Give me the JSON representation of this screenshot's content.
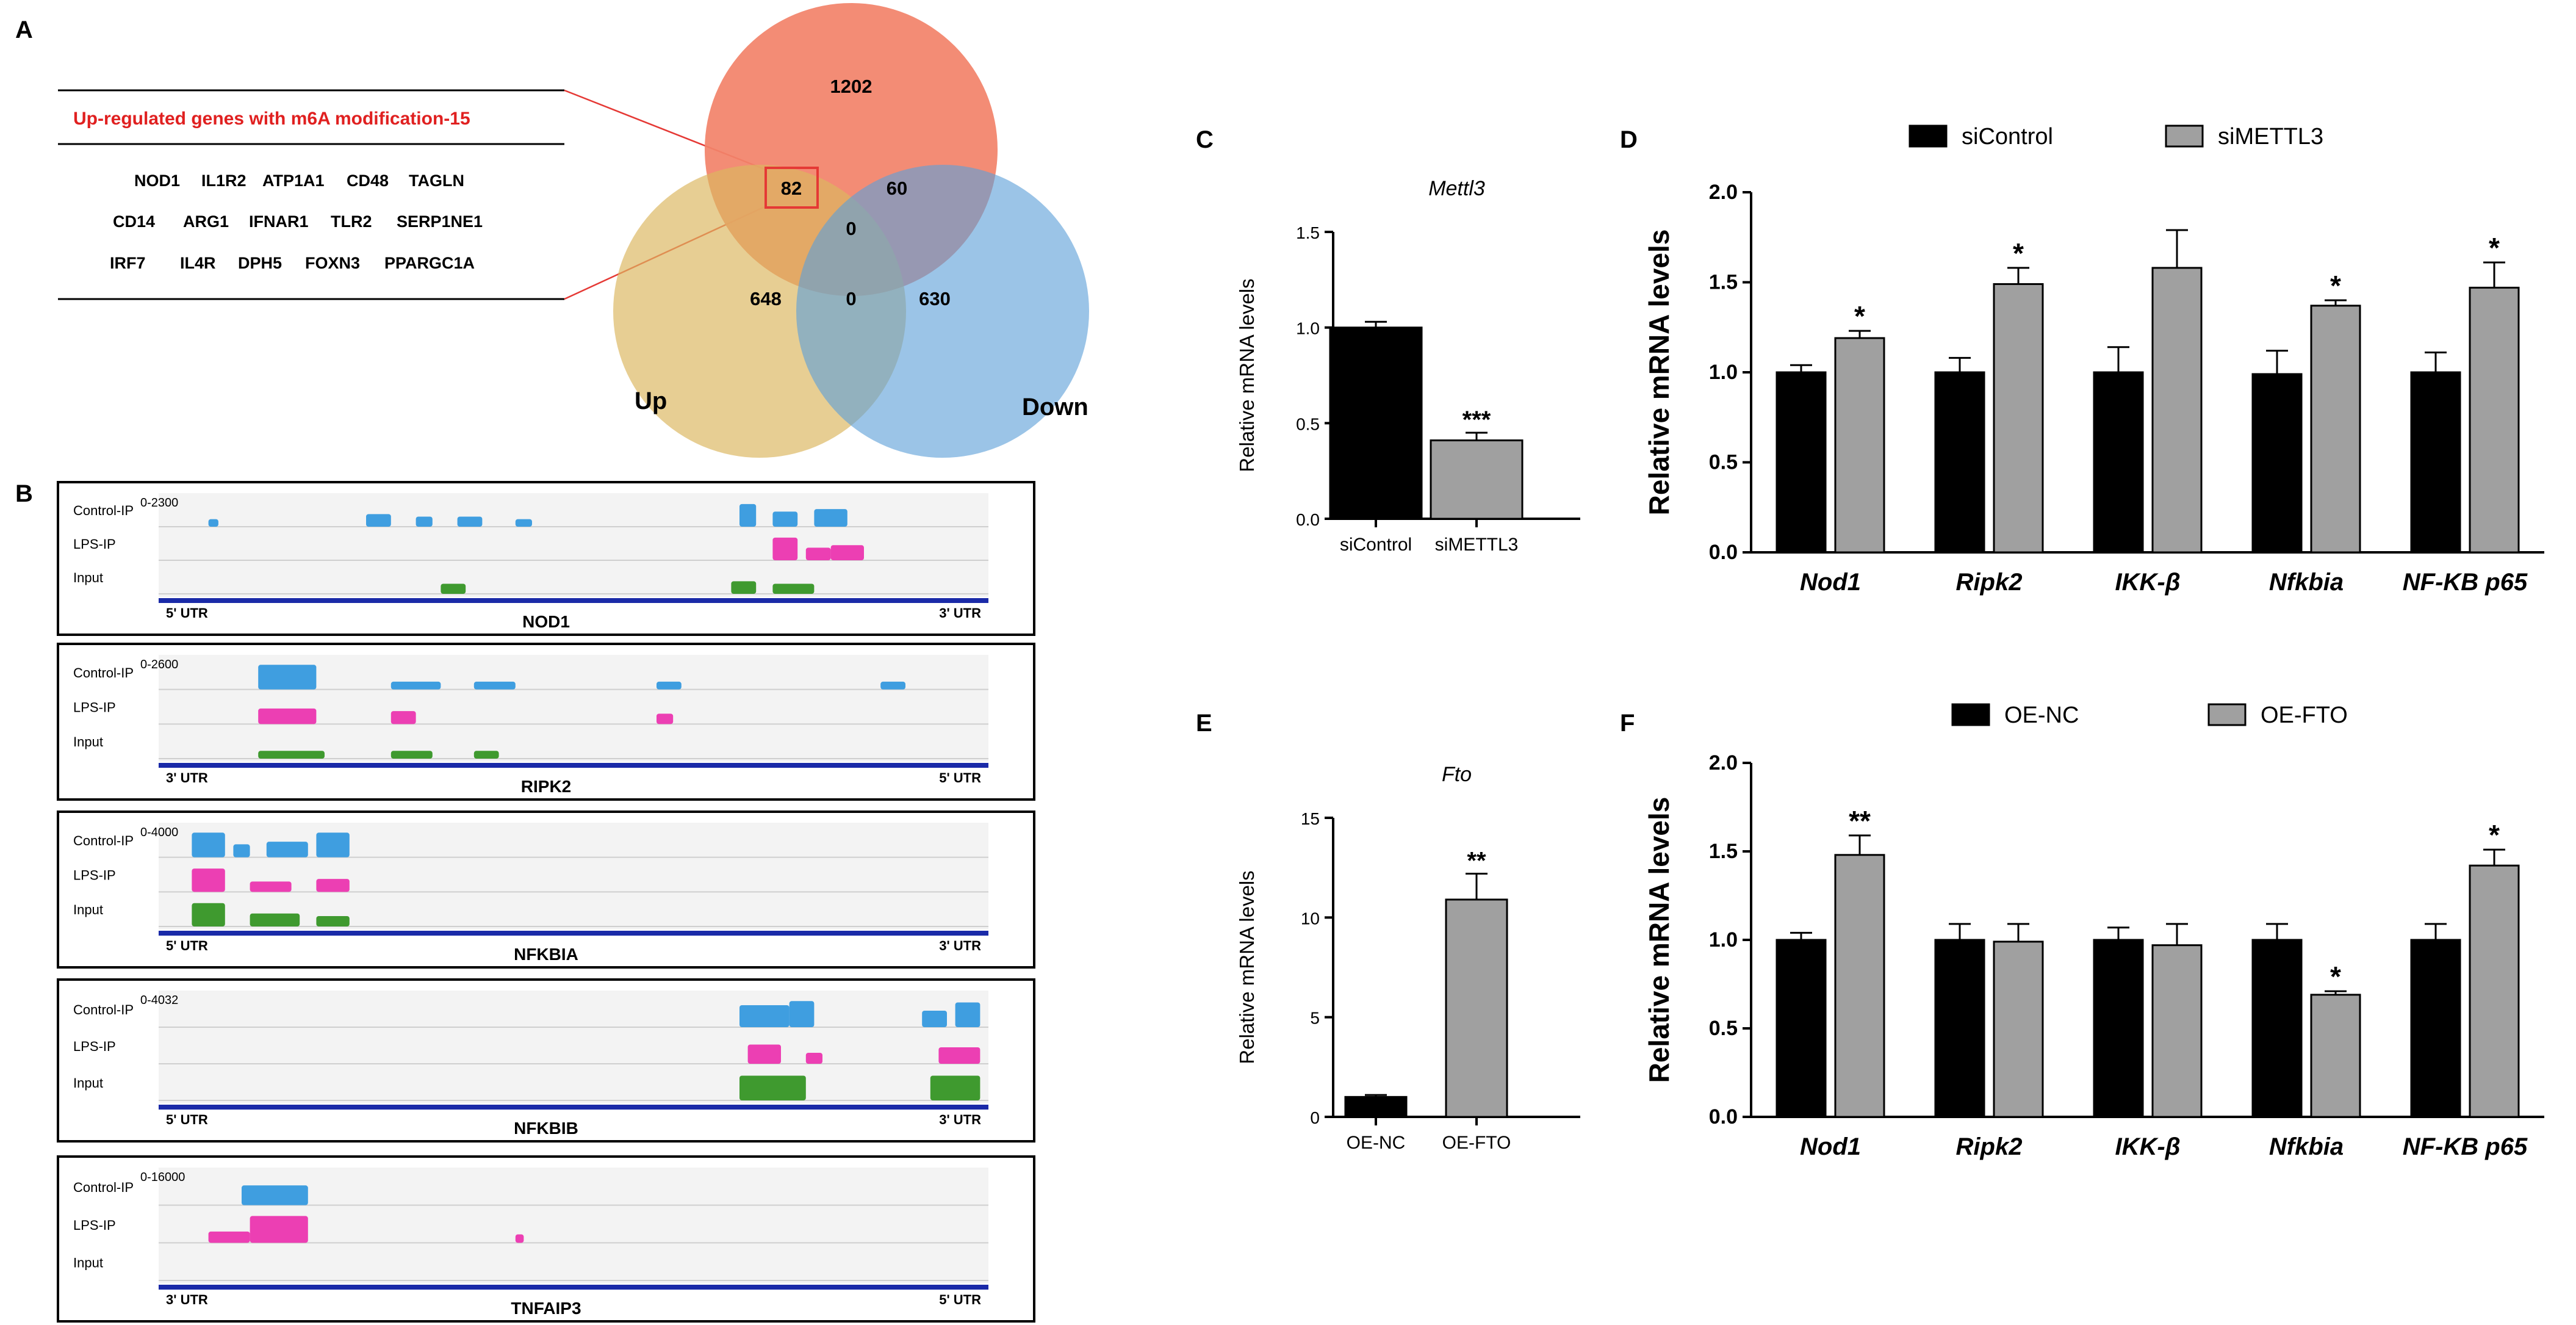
{
  "panel_letters": {
    "a": "A",
    "b": "B",
    "c": "C",
    "d": "D",
    "e": "E",
    "f": "F"
  },
  "venn": {
    "table_title": "Up-regulated genes with m6A modification-15",
    "gene_rows": [
      [
        "NOD1",
        "IL1R2",
        "ATP1A1",
        "CD48",
        "TAGLN"
      ],
      [
        "CD14",
        "ARG1",
        "IFNAR1",
        "TLR2",
        "SERP1NE1"
      ],
      [
        "IRF7",
        "IL4R",
        "DPH5",
        "FOXN3",
        "PPARGC1A"
      ]
    ],
    "regions": {
      "m6a_only": "1202",
      "m6a_up": "82",
      "m6a_down": "60",
      "all_three": "0",
      "up_only": "648",
      "up_down": "0",
      "down_only": "630"
    },
    "set_labels": {
      "up": "Up",
      "down": "Down"
    },
    "colors": {
      "m6a": "#f2836b",
      "up": "#dcb760",
      "down": "#5e9fd8",
      "highlight": "#e53935"
    }
  },
  "tracks": [
    {
      "gene": "NOD1",
      "range": "0-2300",
      "left_utr": "5' UTR",
      "right_utr": "3' UTR",
      "rows": [
        "Control-IP",
        "LPS-IP",
        "Input"
      ]
    },
    {
      "gene": "RIPK2",
      "range": "0-2600",
      "left_utr": "3' UTR",
      "right_utr": "5' UTR",
      "rows": [
        "Control-IP",
        "LPS-IP",
        "Input"
      ]
    },
    {
      "gene": "NFKBIA",
      "range": "0-4000",
      "left_utr": "5' UTR",
      "right_utr": "3' UTR",
      "rows": [
        "Control-IP",
        "LPS-IP",
        "Input"
      ]
    },
    {
      "gene": "NFKBIB",
      "range": "0-4032",
      "left_utr": "5' UTR",
      "right_utr": "3' UTR",
      "rows": [
        "Control-IP",
        "LPS-IP",
        "Input"
      ]
    },
    {
      "gene": "TNFAIP3",
      "range": "0-16000",
      "left_utr": "3' UTR",
      "right_utr": "5' UTR",
      "rows": [
        "Control-IP",
        "LPS-IP",
        "Input"
      ]
    }
  ],
  "track_colors": {
    "control": "#3f9ee0",
    "lps": "#ec3fb3",
    "input": "#3f9a2f",
    "axis": "#1a2aa8"
  },
  "chart_data": [
    {
      "id": "C",
      "type": "bar",
      "title": "Mettl3",
      "ylabel": "Relative mRNA levels",
      "categories": [
        "siControl",
        "siMETTL3"
      ],
      "values": [
        1.0,
        0.41
      ],
      "errors": [
        0.03,
        0.04
      ],
      "sig": [
        "",
        "***"
      ],
      "ylim": [
        0,
        1.5
      ],
      "yticks": [
        "0.0",
        "0.5",
        "1.0",
        "1.5"
      ],
      "colors": [
        "#000000",
        "#a0a0a0"
      ]
    },
    {
      "id": "D",
      "type": "bar",
      "ylabel": "Relative mRNA levels",
      "categories": [
        "Nod1",
        "Ripk2",
        "IKK-β",
        "Nfkbia",
        "NF-KB p65"
      ],
      "series": [
        {
          "name": "siControl",
          "values": [
            1.0,
            1.0,
            1.0,
            0.99,
            1.0
          ],
          "errors": [
            0.04,
            0.08,
            0.14,
            0.13,
            0.11
          ],
          "color": "#000000"
        },
        {
          "name": "siMETTL3",
          "values": [
            1.19,
            1.49,
            1.58,
            1.37,
            1.47
          ],
          "errors": [
            0.04,
            0.09,
            0.21,
            0.03,
            0.14
          ],
          "color": "#a0a0a0",
          "sig": [
            "*",
            "*",
            "",
            "*",
            "*"
          ]
        }
      ],
      "ylim": [
        0,
        2.0
      ],
      "yticks": [
        "0.0",
        "0.5",
        "1.0",
        "1.5",
        "2.0"
      ]
    },
    {
      "id": "E",
      "type": "bar",
      "title": "Fto",
      "ylabel": "Relative mRNA levels",
      "categories": [
        "OE-NC",
        "OE-FTO"
      ],
      "values": [
        1.0,
        10.9
      ],
      "errors": [
        0.1,
        1.3
      ],
      "sig": [
        "",
        "**"
      ],
      "ylim": [
        0,
        15
      ],
      "yticks": [
        "0",
        "5",
        "10",
        "15"
      ],
      "colors": [
        "#000000",
        "#a0a0a0"
      ]
    },
    {
      "id": "F",
      "type": "bar",
      "ylabel": "Relative mRNA levels",
      "categories": [
        "Nod1",
        "Ripk2",
        "IKK-β",
        "Nfkbia",
        "NF-KB p65"
      ],
      "series": [
        {
          "name": "OE-NC",
          "values": [
            1.0,
            1.0,
            1.0,
            1.0,
            1.0
          ],
          "errors": [
            0.04,
            0.09,
            0.07,
            0.09,
            0.09
          ],
          "color": "#000000"
        },
        {
          "name": "OE-FTO",
          "values": [
            1.48,
            0.99,
            0.97,
            0.69,
            1.42
          ],
          "errors": [
            0.11,
            0.1,
            0.12,
            0.02,
            0.09
          ],
          "color": "#a0a0a0",
          "sig": [
            "**",
            "",
            "",
            "*",
            "*"
          ]
        }
      ],
      "ylim": [
        0,
        2.0
      ],
      "yticks": [
        "0.0",
        "0.5",
        "1.0",
        "1.5",
        "2.0"
      ]
    }
  ]
}
